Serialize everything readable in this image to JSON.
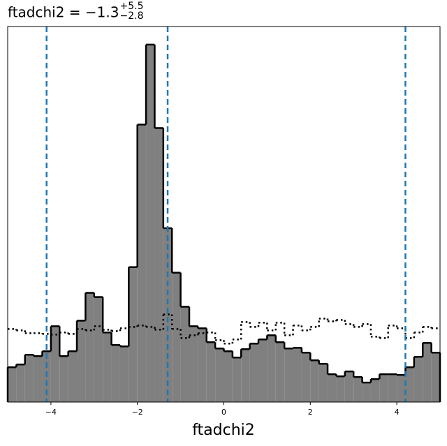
{
  "chart_data": {
    "type": "histogram",
    "title": "ftadchi2 = −1.3",
    "title_sup": "+5.5",
    "title_sub": "−2.8",
    "xlabel": "ftadchi2",
    "bins": [
      -5,
      -4.8,
      -4.6,
      -4.4,
      -4.2,
      -4,
      -3.8,
      -3.6,
      -3.4,
      -3.2,
      -3,
      -2.8,
      -2.6,
      -2.4,
      -2.2,
      -2,
      -1.8,
      -1.6,
      -1.4,
      -1.2,
      -1,
      -0.8,
      -0.6,
      -0.4,
      -0.2,
      0,
      0.2,
      0.4,
      0.6,
      0.8,
      1,
      1.2,
      1.4,
      1.6,
      1.8,
      2,
      2.2,
      2.4,
      2.6,
      2.8,
      3,
      3.2,
      3.4,
      3.6,
      3.8,
      4,
      4.2,
      4.4,
      4.6,
      4.8,
      5
    ],
    "series": [
      {
        "color": "#808080",
        "values": [
          50,
          54,
          68,
          66,
          73,
          109,
          66,
          73,
          117,
          157,
          151,
          100,
          82,
          80,
          194,
          399,
          514,
          394,
          250,
          186,
          137,
          109,
          106,
          86,
          77,
          73,
          64,
          76,
          84,
          90,
          96,
          86,
          77,
          78,
          71,
          60,
          55,
          40,
          37,
          44,
          36,
          28,
          33,
          40,
          40,
          39,
          50,
          65,
          85,
          71
        ]
      },
      {
        "color": "#000000",
        "style": "dotted",
        "values": [
          105,
          103,
          99,
          99,
          98,
          97,
          100,
          98,
          105,
          103,
          109,
          104,
          102,
          106,
          108,
          110,
          108,
          104,
          126,
          105,
          92,
          96,
          99,
          100,
          89,
          84,
          90,
          115,
          108,
          114,
          103,
          114,
          96,
          110,
          103,
          108,
          120,
          116,
          118,
          112,
          108,
          112,
          94,
          92,
          110,
          106,
          92,
          100,
          108,
          106
        ]
      }
    ],
    "vlines": [
      -4.1,
      -1.3,
      4.2
    ],
    "vline_color": "#1f77b4",
    "xlim": [
      -5,
      5
    ],
    "ylim": [
      0,
      540
    ],
    "xticks": [
      {
        "value": -4,
        "label": "−4"
      },
      {
        "value": -2,
        "label": "−2"
      },
      0,
      2,
      4
    ]
  }
}
